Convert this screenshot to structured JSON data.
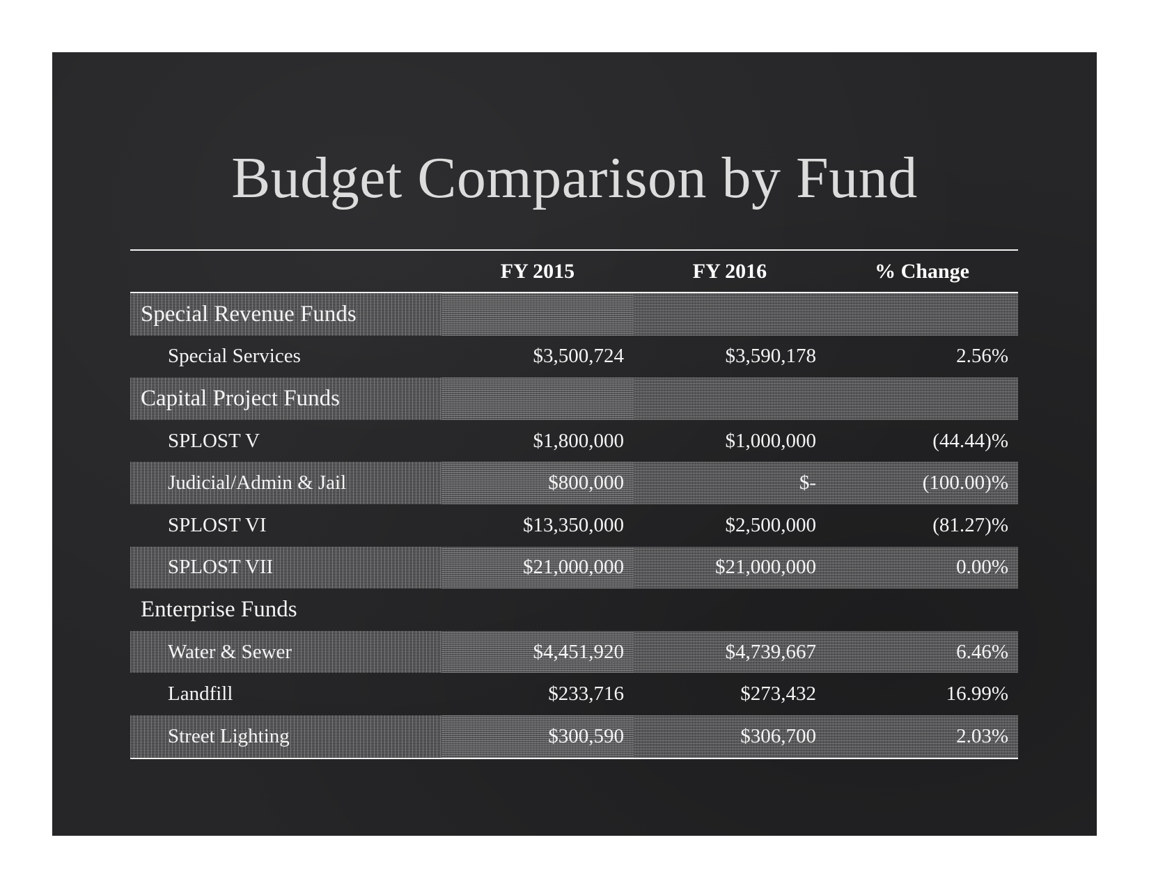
{
  "slide": {
    "title": "Budget Comparison by Fund"
  },
  "table": {
    "headers": [
      "",
      "FY 2015",
      "FY 2016",
      "% Change"
    ],
    "rows": [
      {
        "type": "category",
        "label": "Special Revenue Funds",
        "fy2015": "",
        "fy2016": "",
        "change": "",
        "banded": true
      },
      {
        "type": "item",
        "label": "Special Services",
        "fy2015": "$3,500,724",
        "fy2016": "$3,590,178",
        "change": "2.56%",
        "banded": false
      },
      {
        "type": "category",
        "label": "Capital Project Funds",
        "fy2015": "",
        "fy2016": "",
        "change": "",
        "banded": true
      },
      {
        "type": "item",
        "label": "SPLOST V",
        "fy2015": "$1,800,000",
        "fy2016": "$1,000,000",
        "change": "(44.44)%",
        "banded": false
      },
      {
        "type": "item",
        "label": "Judicial/Admin & Jail",
        "fy2015": "$800,000",
        "fy2016": "$-",
        "change": "(100.00)%",
        "banded": true
      },
      {
        "type": "item",
        "label": "SPLOST VI",
        "fy2015": "$13,350,000",
        "fy2016": "$2,500,000",
        "change": "(81.27)%",
        "banded": false
      },
      {
        "type": "item",
        "label": "SPLOST VII",
        "fy2015": "$21,000,000",
        "fy2016": "$21,000,000",
        "change": "0.00%",
        "banded": true
      },
      {
        "type": "category",
        "label": "Enterprise Funds",
        "fy2015": "",
        "fy2016": "",
        "change": "",
        "banded": false
      },
      {
        "type": "item",
        "label": "Water & Sewer",
        "fy2015": "$4,451,920",
        "fy2016": "$4,739,667",
        "change": "6.46%",
        "banded": true
      },
      {
        "type": "item",
        "label": "Landfill",
        "fy2015": "$233,716",
        "fy2016": "$273,432",
        "change": "16.99%",
        "banded": false
      },
      {
        "type": "item",
        "label": "Street Lighting",
        "fy2015": "$300,590",
        "fy2016": "$306,700",
        "change": "2.03%",
        "banded": true
      }
    ]
  },
  "colors": {
    "slide_background": "#262628",
    "title_text": "#dcdcdc",
    "table_text": "#f4f4f4",
    "band_fill": "#565658",
    "rule": "#f2f2f2"
  }
}
